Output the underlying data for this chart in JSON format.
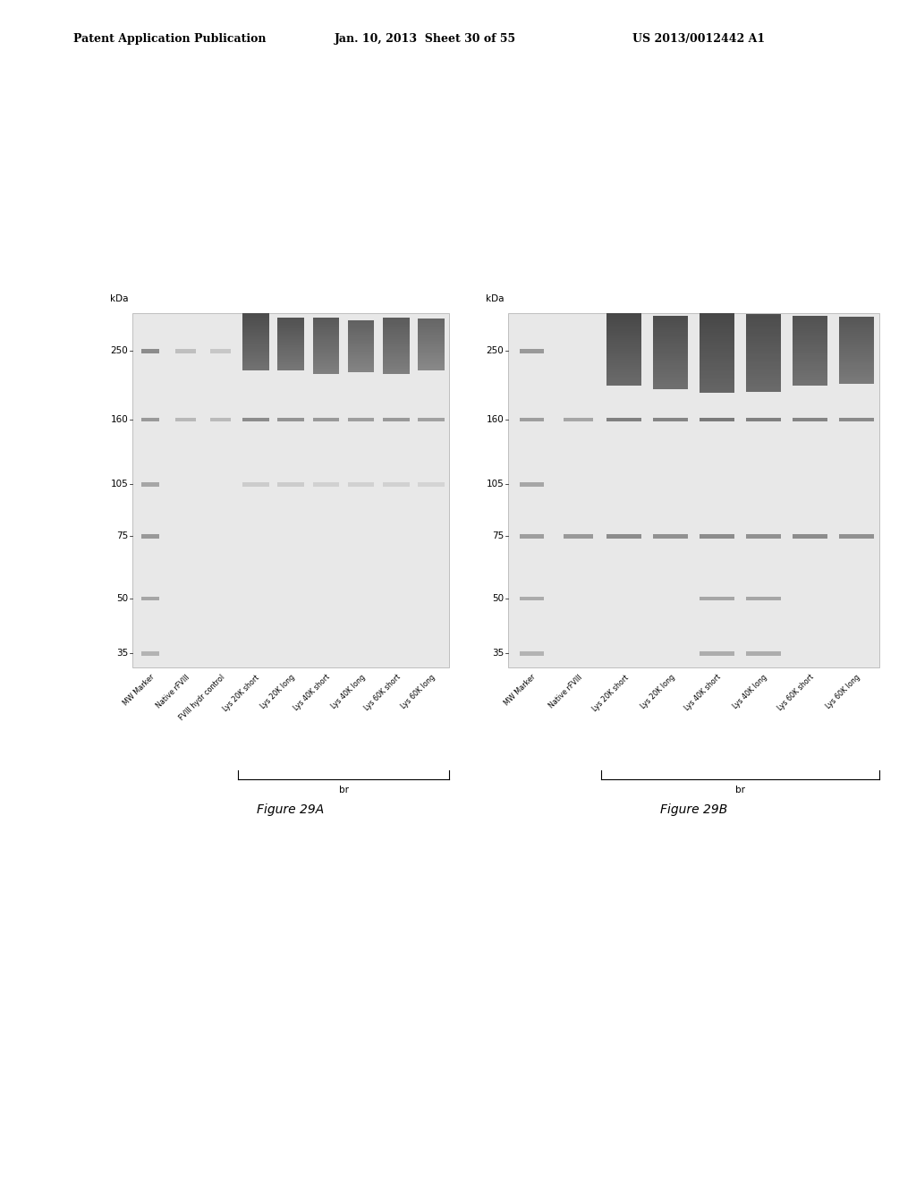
{
  "header_left": "Patent Application Publication",
  "header_center": "Jan. 10, 2013  Sheet 30 of 55",
  "header_right": "US 2013/0012442 A1",
  "fig_a_label": "Figure 29A",
  "fig_b_label": "Figure 29B",
  "kda_label": "kDa",
  "mw_ticks": [
    250,
    160,
    105,
    75,
    50,
    35
  ],
  "lane_labels_a": [
    "MW Marker",
    "Native rFVIII",
    "FVIII hydr control",
    "Lys 20K short",
    "Lys 20K long",
    "Lys 40K short",
    "Lys 40K long",
    "Lys 60K short",
    "Lys 60K long"
  ],
  "lane_labels_b": [
    "MW Marker",
    "Native rFVIII",
    "Lys 20K short",
    "Lys 20K long",
    "Lys 40K short",
    "Lys 40K long",
    "Lys 60K short",
    "Lys 60K long"
  ],
  "br_label": "br",
  "bg_color": "#ffffff"
}
